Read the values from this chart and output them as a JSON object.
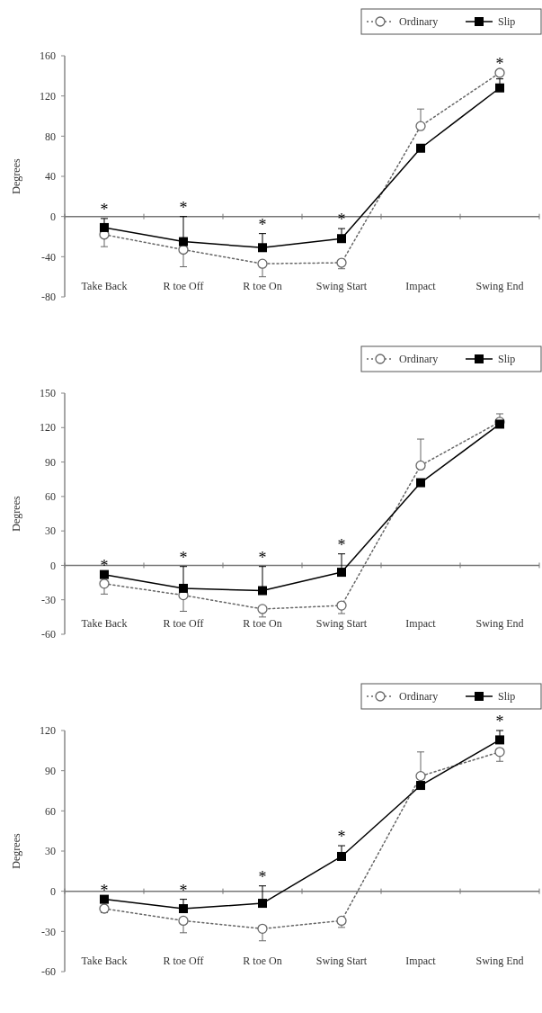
{
  "chart_data": [
    {
      "type": "line",
      "ylabel": "Degrees",
      "categories": [
        "Take Back",
        "R toe Off",
        "R toe On",
        "Swing Start",
        "Impact",
        "Swing End"
      ],
      "ylim": [
        -80,
        160
      ],
      "yticks": [
        -80,
        -40,
        0,
        40,
        80,
        120,
        160
      ],
      "legend": "top right",
      "grid": false,
      "series": [
        {
          "name": "Ordinary",
          "color": "#666666",
          "marker": "circle",
          "line_style": "dotted",
          "values": [
            -18,
            -33,
            -47,
            -46,
            90,
            143
          ],
          "errors": [
            [
              -30,
              -18
            ],
            [
              -50,
              -33
            ],
            [
              -60,
              -47
            ],
            [
              -52,
              -46
            ],
            [
              90,
              107
            ],
            null
          ]
        },
        {
          "name": "Slip",
          "color": "#000000",
          "marker": "square",
          "line_style": "solid",
          "values": [
            -11,
            -25,
            -31,
            -22,
            68,
            128
          ],
          "errors": [
            [
              -11,
              -2
            ],
            [
              -25,
              0
            ],
            [
              -31,
              -17
            ],
            [
              -22,
              -12
            ],
            null,
            [
              128,
              137
            ]
          ]
        }
      ],
      "ref_lines": [
        {
          "axis": "y",
          "value": 0,
          "color": "#777777"
        }
      ],
      "annotations": [
        {
          "text": "*",
          "x": "Take Back",
          "y": -2
        },
        {
          "text": "*",
          "x": "R toe Off",
          "y": 0
        },
        {
          "text": "*",
          "x": "R toe On",
          "y": -17
        },
        {
          "text": "*",
          "x": "Swing Start",
          "y": -12
        },
        {
          "text": "*",
          "x": "Swing End",
          "y": 143
        }
      ]
    },
    {
      "type": "line",
      "ylabel": "Degrees",
      "categories": [
        "Take Back",
        "R toe Off",
        "R toe On",
        "Swing Start",
        "Impact",
        "Swing End"
      ],
      "ylim": [
        -60,
        150
      ],
      "yticks": [
        -60,
        -30,
        0,
        30,
        60,
        90,
        120,
        150
      ],
      "legend": "top right",
      "grid": false,
      "series": [
        {
          "name": "Ordinary",
          "color": "#666666",
          "marker": "circle",
          "line_style": "dotted",
          "values": [
            -16,
            -26,
            -38,
            -35,
            87,
            125
          ],
          "errors": [
            [
              -25,
              -16
            ],
            [
              -40,
              -26
            ],
            [
              -45,
              -38
            ],
            [
              -42,
              -35
            ],
            [
              87,
              110
            ],
            [
              125,
              132
            ]
          ]
        },
        {
          "name": "Slip",
          "color": "#000000",
          "marker": "square",
          "line_style": "solid",
          "values": [
            -8,
            -20,
            -22,
            -6,
            72,
            123
          ],
          "errors": [
            null,
            [
              -20,
              -1
            ],
            [
              -22,
              -1
            ],
            [
              -6,
              10
            ],
            null,
            null
          ]
        }
      ],
      "ref_lines": [
        {
          "axis": "y",
          "value": 0,
          "color": "#777777"
        }
      ],
      "annotations": [
        {
          "text": "*",
          "x": "Take Back",
          "y": -8
        },
        {
          "text": "*",
          "x": "R toe Off",
          "y": -1
        },
        {
          "text": "*",
          "x": "R toe On",
          "y": -1
        },
        {
          "text": "*",
          "x": "Swing Start",
          "y": 10
        }
      ]
    },
    {
      "type": "line",
      "ylabel": "Degrees",
      "categories": [
        "Take Back",
        "R toe Off",
        "R toe On",
        "Swing Start",
        "Impact",
        "Swing End"
      ],
      "ylim": [
        -60,
        120
      ],
      "yticks": [
        -60,
        -30,
        0,
        30,
        60,
        90,
        120
      ],
      "legend": "top right",
      "grid": false,
      "series": [
        {
          "name": "Ordinary",
          "color": "#666666",
          "marker": "circle",
          "line_style": "dotted",
          "values": [
            -13,
            -22,
            -28,
            -22,
            86,
            104
          ],
          "errors": [
            [
              -16,
              -13
            ],
            [
              -31,
              -22
            ],
            [
              -37,
              -28
            ],
            [
              -27,
              -22
            ],
            [
              86,
              104
            ],
            [
              97,
              104
            ]
          ]
        },
        {
          "name": "Slip",
          "color": "#000000",
          "marker": "square",
          "line_style": "solid",
          "values": [
            -6,
            -13,
            -9,
            26,
            79,
            113
          ],
          "errors": [
            null,
            [
              -13,
              -6
            ],
            [
              -9,
              4
            ],
            [
              26,
              34
            ],
            null,
            [
              113,
              120
            ]
          ]
        }
      ],
      "ref_lines": [
        {
          "axis": "y",
          "value": 0,
          "color": "#777777"
        }
      ],
      "annotations": [
        {
          "text": "*",
          "x": "Take Back",
          "y": -6
        },
        {
          "text": "*",
          "x": "R toe Off",
          "y": -6
        },
        {
          "text": "*",
          "x": "R toe On",
          "y": 4
        },
        {
          "text": "*",
          "x": "Swing Start",
          "y": 34
        },
        {
          "text": "*",
          "x": "Swing End",
          "y": 120
        }
      ]
    }
  ]
}
